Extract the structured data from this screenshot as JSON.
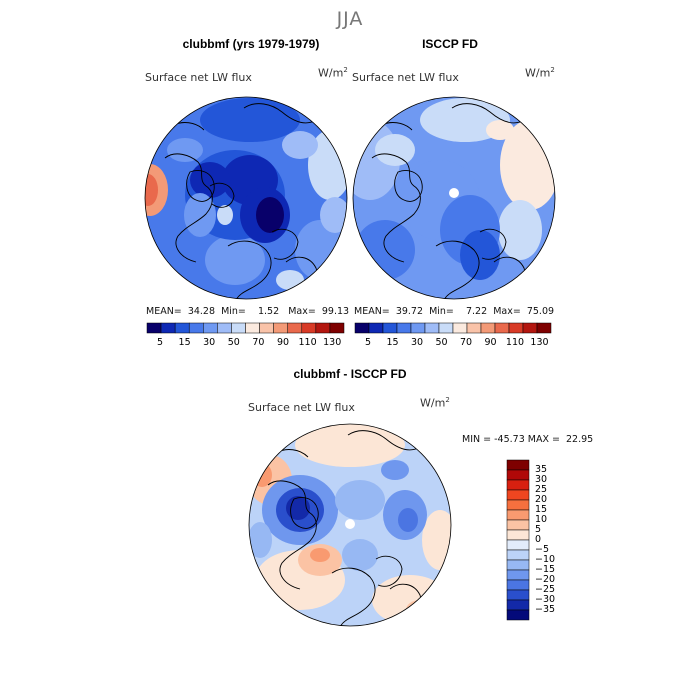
{
  "season": "JJA",
  "panels": [
    {
      "title": "clubbmf (yrs 1979-1979)",
      "subtitle": "Surface net LW flux",
      "unit_base": "W/m",
      "unit_exp": "2",
      "stats": {
        "mean_label": "MEAN=",
        "mean": "34.28",
        "min_label": "Min=",
        "min": "1.52",
        "max_label": "Max=",
        "max": "99.13"
      }
    },
    {
      "title": "ISCCP FD",
      "subtitle": "Surface net LW flux",
      "unit_base": "W/m",
      "unit_exp": "2",
      "stats": {
        "mean_label": "MEAN=",
        "mean": "39.72",
        "min_label": "Min=",
        "min": "7.22",
        "max_label": "Max=",
        "max": "75.09"
      }
    }
  ],
  "abs_colorbar": {
    "labels": [
      "5",
      "15",
      "30",
      "50",
      "70",
      "90",
      "110",
      "130"
    ],
    "colors": [
      "#08006a",
      "#0e28b4",
      "#2356d8",
      "#4879ea",
      "#6f99f2",
      "#9fbcf7",
      "#c9dcf8",
      "#fbeadf",
      "#f9c3a9",
      "#f39a77",
      "#e9694c",
      "#d83a26",
      "#b3160f",
      "#7e0000"
    ]
  },
  "diff_panel": {
    "title": "clubbmf - ISCCP FD",
    "subtitle": "Surface net LW flux",
    "unit_base": "W/m",
    "unit_exp": "2",
    "stats": {
      "min_label": "MIN =",
      "min": "-45.73",
      "max_label": "MAX =",
      "max": "22.95"
    }
  },
  "diff_colorbar": {
    "labels": [
      "35",
      "30",
      "25",
      "20",
      "15",
      "10",
      "5",
      "0",
      "−5",
      "−10",
      "−15",
      "−20",
      "−25",
      "−30",
      "−35"
    ],
    "colors": [
      "#7e0000",
      "#b00808",
      "#d82010",
      "#ef4620",
      "#f6703e",
      "#f99a70",
      "#fbc3a4",
      "#fce6d6",
      "#e2ecfb",
      "#bcd3f8",
      "#97b8f3",
      "#6f97ee",
      "#4b75e2",
      "#2a4fcc",
      "#1329a8",
      "#040a7a"
    ]
  }
}
